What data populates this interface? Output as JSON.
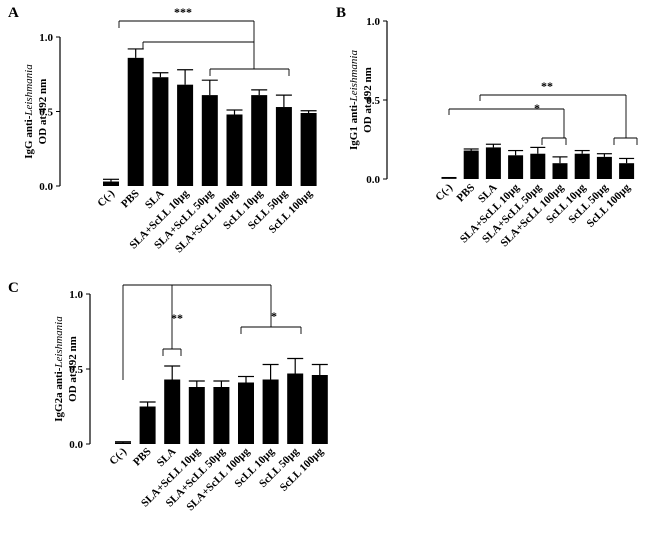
{
  "chart_data": [
    {
      "type": "bar",
      "panel": "A",
      "ylabel_prefix": "IgG anti-",
      "ylabel_italic": "Leishmania",
      "ylabel_line2": "OD at  492 nm",
      "ylim": [
        0,
        1.0
      ],
      "yticks": [
        "0.0",
        "0.5",
        "1.0"
      ],
      "categories": [
        "C(-)",
        "PBS",
        "SLA",
        "SLA+ScLL 10µg",
        "SLA+ScLL 50µg",
        "SLA+ScLL 100µg",
        "ScLL 10µg",
        "ScLL 50µg",
        "ScLL 100µg"
      ],
      "values": [
        0.03,
        0.86,
        0.73,
        0.68,
        0.61,
        0.48,
        0.61,
        0.53,
        0.49
      ],
      "errors": [
        0.015,
        0.06,
        0.03,
        0.1,
        0.1,
        0.03,
        0.035,
        0.08,
        0.015
      ],
      "significance": [
        "***"
      ]
    },
    {
      "type": "bar",
      "panel": "B",
      "ylabel_prefix": "IgG1 anti-",
      "ylabel_italic": "Leishmania",
      "ylabel_line2": "OD at  492 nm",
      "ylim": [
        0,
        1.0
      ],
      "yticks": [
        "0.0",
        "0.5",
        "1.0"
      ],
      "categories": [
        "C(-)",
        "PBS",
        "SLA",
        "SLA+ScLL 10µg",
        "SLA+ScLL 50µg",
        "SLA+ScLL 100µg",
        "ScLL 10µg",
        "ScLL 50µg",
        "ScLL 100µg"
      ],
      "values": [
        0.005,
        0.18,
        0.2,
        0.15,
        0.16,
        0.1,
        0.16,
        0.14,
        0.1
      ],
      "errors": [
        0.004,
        0.01,
        0.02,
        0.03,
        0.04,
        0.04,
        0.02,
        0.02,
        0.03
      ],
      "significance": [
        "**",
        "*"
      ]
    },
    {
      "type": "bar",
      "panel": "C",
      "ylabel_prefix": "IgG2a anti-",
      "ylabel_italic": "Leishmania",
      "ylabel_line2": "OD at  492 nm",
      "ylim": [
        0,
        1.0
      ],
      "yticks": [
        "0.0",
        "0.5",
        "1.0"
      ],
      "categories": [
        "C(-)",
        "PBS",
        "SLA",
        "SLA+ScLL 10µg",
        "SLA+ScLL 50µg",
        "SLA+ScLL 100µg",
        "ScLL 10µg",
        "ScLL 50µg",
        "ScLL 100µg"
      ],
      "values": [
        0.01,
        0.25,
        0.43,
        0.38,
        0.38,
        0.41,
        0.43,
        0.47,
        0.46
      ],
      "errors": [
        0.005,
        0.03,
        0.09,
        0.04,
        0.04,
        0.04,
        0.1,
        0.1,
        0.07
      ],
      "significance": [
        "**",
        "*"
      ]
    }
  ]
}
